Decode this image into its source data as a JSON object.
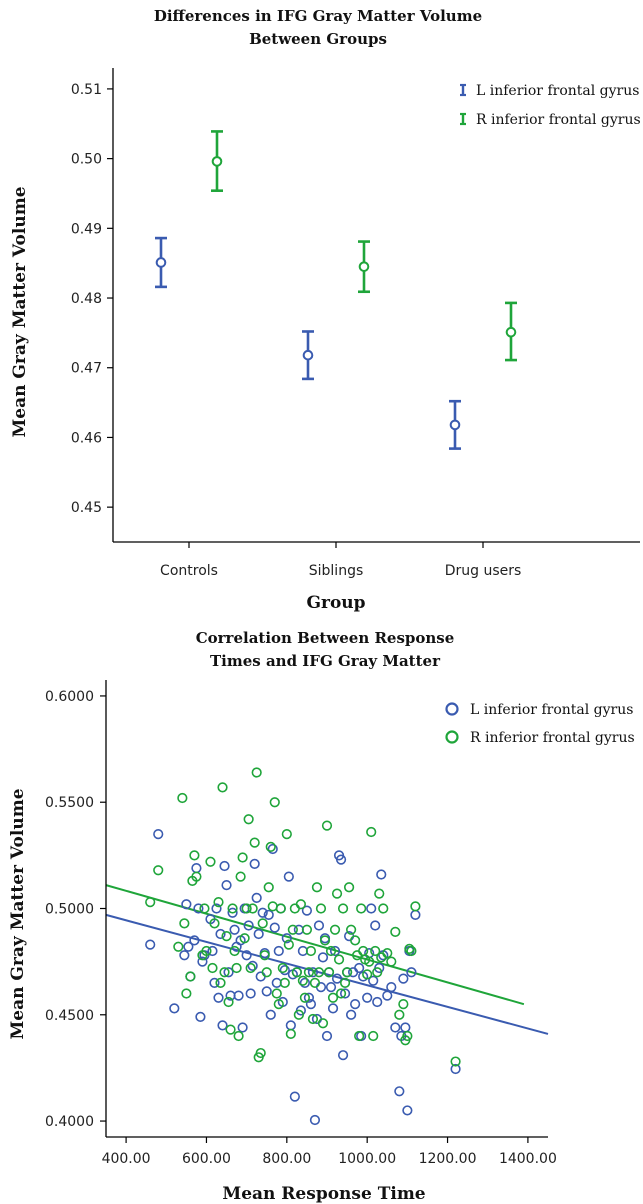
{
  "colors": {
    "L": "#3a5bb0",
    "R": "#1fa53a"
  },
  "chart_data": [
    {
      "type": "errorbar",
      "title": [
        "Differences in IFG Gray Matter Volume",
        "Between Groups"
      ],
      "xlabel": "Group",
      "ylabel": "Mean Gray Matter Volume",
      "categories": [
        "Controls",
        "Siblings",
        "Drug users"
      ],
      "ylim": [
        0.445,
        0.513
      ],
      "yticks": [
        "0.45",
        "0.46",
        "0.47",
        "0.48",
        "0.49",
        "0.50",
        "0.51"
      ],
      "legend_position": "top-right",
      "series": [
        {
          "name": "L inferior frontal gyrus",
          "color_key": "L",
          "means": [
            0.4851,
            0.4718,
            0.4618
          ],
          "lower": [
            0.4816,
            0.4684,
            0.4584
          ],
          "upper": [
            0.4886,
            0.4752,
            0.4652
          ]
        },
        {
          "name": "R inferior frontal gyrus",
          "color_key": "R",
          "means": [
            0.4996,
            0.4845,
            0.4751
          ],
          "lower": [
            0.4954,
            0.4809,
            0.4711
          ],
          "upper": [
            0.5039,
            0.4881,
            0.4793
          ]
        }
      ]
    },
    {
      "type": "scatter",
      "title": [
        "Correlation Between Response",
        "Times and IFG Gray Matter"
      ],
      "xlabel": "Mean Response Time",
      "ylabel": "Mean Gray Matter Volume",
      "xlim": [
        350,
        1450
      ],
      "ylim": [
        0.3925,
        0.6075
      ],
      "xticks": [
        "400.00",
        "600.00",
        "800.00",
        "1000.00",
        "1200.00",
        "1400.00"
      ],
      "yticks": [
        "0.4000",
        "0.4500",
        "0.5000",
        "0.5500",
        "0.6000"
      ],
      "legend_position": "top-right",
      "series": [
        {
          "name": "L inferior frontal gyrus",
          "color_key": "L",
          "fit": [
            [
              350,
              0.497
            ],
            [
              1450,
              0.441
            ]
          ],
          "points": [
            [
              460,
              0.483
            ],
            [
              480,
              0.535
            ],
            [
              520,
              0.453
            ],
            [
              545,
              0.478
            ],
            [
              550,
              0.502
            ],
            [
              555,
              0.482
            ],
            [
              560,
              0.468
            ],
            [
              570,
              0.485
            ],
            [
              575,
              0.519
            ],
            [
              580,
              0.5
            ],
            [
              585,
              0.449
            ],
            [
              590,
              0.475
            ],
            [
              595,
              0.478
            ],
            [
              610,
              0.495
            ],
            [
              615,
              0.48
            ],
            [
              620,
              0.465
            ],
            [
              625,
              0.5
            ],
            [
              630,
              0.458
            ],
            [
              635,
              0.488
            ],
            [
              640,
              0.445
            ],
            [
              645,
              0.52
            ],
            [
              650,
              0.511
            ],
            [
              655,
              0.47
            ],
            [
              660,
              0.459
            ],
            [
              665,
              0.498
            ],
            [
              670,
              0.49
            ],
            [
              675,
              0.482
            ],
            [
              680,
              0.459
            ],
            [
              685,
              0.485
            ],
            [
              690,
              0.444
            ],
            [
              695,
              0.5
            ],
            [
              700,
              0.478
            ],
            [
              705,
              0.492
            ],
            [
              710,
              0.46
            ],
            [
              715,
              0.473
            ],
            [
              720,
              0.521
            ],
            [
              725,
              0.505
            ],
            [
              730,
              0.488
            ],
            [
              735,
              0.468
            ],
            [
              740,
              0.498
            ],
            [
              745,
              0.479
            ],
            [
              750,
              0.461
            ],
            [
              755,
              0.497
            ],
            [
              760,
              0.45
            ],
            [
              765,
              0.528
            ],
            [
              770,
              0.491
            ],
            [
              775,
              0.465
            ],
            [
              780,
              0.48
            ],
            [
              785,
              0.5
            ],
            [
              790,
              0.456
            ],
            [
              795,
              0.471
            ],
            [
              800,
              0.486
            ],
            [
              805,
              0.515
            ],
            [
              810,
              0.445
            ],
            [
              815,
              0.469
            ],
            [
              820,
              0.4115
            ],
            [
              825,
              0.47
            ],
            [
              830,
              0.49
            ],
            [
              835,
              0.452
            ],
            [
              840,
              0.48
            ],
            [
              845,
              0.465
            ],
            [
              850,
              0.499
            ],
            [
              855,
              0.458
            ],
            [
              860,
              0.455
            ],
            [
              865,
              0.47
            ],
            [
              870,
              0.4005
            ],
            [
              875,
              0.448
            ],
            [
              880,
              0.492
            ],
            [
              885,
              0.463
            ],
            [
              890,
              0.477
            ],
            [
              895,
              0.486
            ],
            [
              900,
              0.44
            ],
            [
              905,
              0.47
            ],
            [
              910,
              0.463
            ],
            [
              915,
              0.453
            ],
            [
              920,
              0.48
            ],
            [
              925,
              0.467
            ],
            [
              930,
              0.525
            ],
            [
              935,
              0.523
            ],
            [
              940,
              0.431
            ],
            [
              945,
              0.46
            ],
            [
              950,
              0.47
            ],
            [
              955,
              0.487
            ],
            [
              960,
              0.45
            ],
            [
              965,
              0.47
            ],
            [
              970,
              0.455
            ],
            [
              980,
              0.472
            ],
            [
              985,
              0.44
            ],
            [
              990,
              0.468
            ],
            [
              1000,
              0.458
            ],
            [
              1005,
              0.479
            ],
            [
              1010,
              0.5
            ],
            [
              1015,
              0.466
            ],
            [
              1020,
              0.492
            ],
            [
              1025,
              0.456
            ],
            [
              1030,
              0.472
            ],
            [
              1035,
              0.516
            ],
            [
              1040,
              0.478
            ],
            [
              1050,
              0.459
            ],
            [
              1060,
              0.463
            ],
            [
              1070,
              0.444
            ],
            [
              1080,
              0.414
            ],
            [
              1085,
              0.44
            ],
            [
              1090,
              0.467
            ],
            [
              1095,
              0.444
            ],
            [
              1100,
              0.405
            ],
            [
              1105,
              0.48
            ],
            [
              1110,
              0.47
            ],
            [
              1120,
              0.497
            ],
            [
              1220,
              0.4245
            ]
          ]
        },
        {
          "name": "R inferior frontal gyrus",
          "color_key": "R",
          "fit": [
            [
              350,
              0.511
            ],
            [
              1390,
              0.455
            ]
          ],
          "points": [
            [
              460,
              0.503
            ],
            [
              480,
              0.518
            ],
            [
              530,
              0.482
            ],
            [
              540,
              0.552
            ],
            [
              545,
              0.493
            ],
            [
              550,
              0.46
            ],
            [
              560,
              0.468
            ],
            [
              565,
              0.513
            ],
            [
              570,
              0.525
            ],
            [
              575,
              0.515
            ],
            [
              590,
              0.478
            ],
            [
              595,
              0.5
            ],
            [
              600,
              0.48
            ],
            [
              610,
              0.522
            ],
            [
              615,
              0.472
            ],
            [
              620,
              0.493
            ],
            [
              630,
              0.503
            ],
            [
              635,
              0.465
            ],
            [
              640,
              0.557
            ],
            [
              645,
              0.47
            ],
            [
              650,
              0.487
            ],
            [
              655,
              0.456
            ],
            [
              660,
              0.443
            ],
            [
              665,
              0.5
            ],
            [
              670,
              0.48
            ],
            [
              675,
              0.472
            ],
            [
              680,
              0.44
            ],
            [
              685,
              0.515
            ],
            [
              690,
              0.524
            ],
            [
              695,
              0.486
            ],
            [
              700,
              0.5
            ],
            [
              705,
              0.542
            ],
            [
              710,
              0.472
            ],
            [
              715,
              0.5
            ],
            [
              720,
              0.531
            ],
            [
              725,
              0.564
            ],
            [
              730,
              0.43
            ],
            [
              735,
              0.432
            ],
            [
              740,
              0.493
            ],
            [
              745,
              0.478
            ],
            [
              750,
              0.47
            ],
            [
              755,
              0.51
            ],
            [
              760,
              0.529
            ],
            [
              765,
              0.501
            ],
            [
              770,
              0.55
            ],
            [
              775,
              0.46
            ],
            [
              780,
              0.455
            ],
            [
              785,
              0.5
            ],
            [
              790,
              0.472
            ],
            [
              795,
              0.465
            ],
            [
              800,
              0.535
            ],
            [
              805,
              0.483
            ],
            [
              810,
              0.441
            ],
            [
              815,
              0.49
            ],
            [
              820,
              0.5
            ],
            [
              825,
              0.47
            ],
            [
              830,
              0.45
            ],
            [
              835,
              0.502
            ],
            [
              840,
              0.466
            ],
            [
              845,
              0.458
            ],
            [
              850,
              0.49
            ],
            [
              855,
              0.47
            ],
            [
              860,
              0.48
            ],
            [
              865,
              0.448
            ],
            [
              870,
              0.465
            ],
            [
              875,
              0.51
            ],
            [
              880,
              0.47
            ],
            [
              885,
              0.5
            ],
            [
              890,
              0.446
            ],
            [
              895,
              0.485
            ],
            [
              900,
              0.539
            ],
            [
              905,
              0.47
            ],
            [
              910,
              0.48
            ],
            [
              915,
              0.458
            ],
            [
              920,
              0.49
            ],
            [
              925,
              0.507
            ],
            [
              930,
              0.476
            ],
            [
              935,
              0.46
            ],
            [
              940,
              0.5
            ],
            [
              945,
              0.465
            ],
            [
              950,
              0.47
            ],
            [
              955,
              0.51
            ],
            [
              960,
              0.49
            ],
            [
              970,
              0.485
            ],
            [
              975,
              0.478
            ],
            [
              980,
              0.44
            ],
            [
              985,
              0.5
            ],
            [
              990,
              0.48
            ],
            [
              995,
              0.476
            ],
            [
              1000,
              0.469
            ],
            [
              1005,
              0.475
            ],
            [
              1010,
              0.536
            ],
            [
              1015,
              0.44
            ],
            [
              1020,
              0.48
            ],
            [
              1025,
              0.47
            ],
            [
              1030,
              0.507
            ],
            [
              1035,
              0.477
            ],
            [
              1040,
              0.5
            ],
            [
              1050,
              0.479
            ],
            [
              1060,
              0.475
            ],
            [
              1070,
              0.489
            ],
            [
              1080,
              0.45
            ],
            [
              1090,
              0.455
            ],
            [
              1095,
              0.438
            ],
            [
              1100,
              0.44
            ],
            [
              1105,
              0.481
            ],
            [
              1110,
              0.48
            ],
            [
              1120,
              0.501
            ],
            [
              1220,
              0.428
            ]
          ]
        }
      ]
    }
  ]
}
